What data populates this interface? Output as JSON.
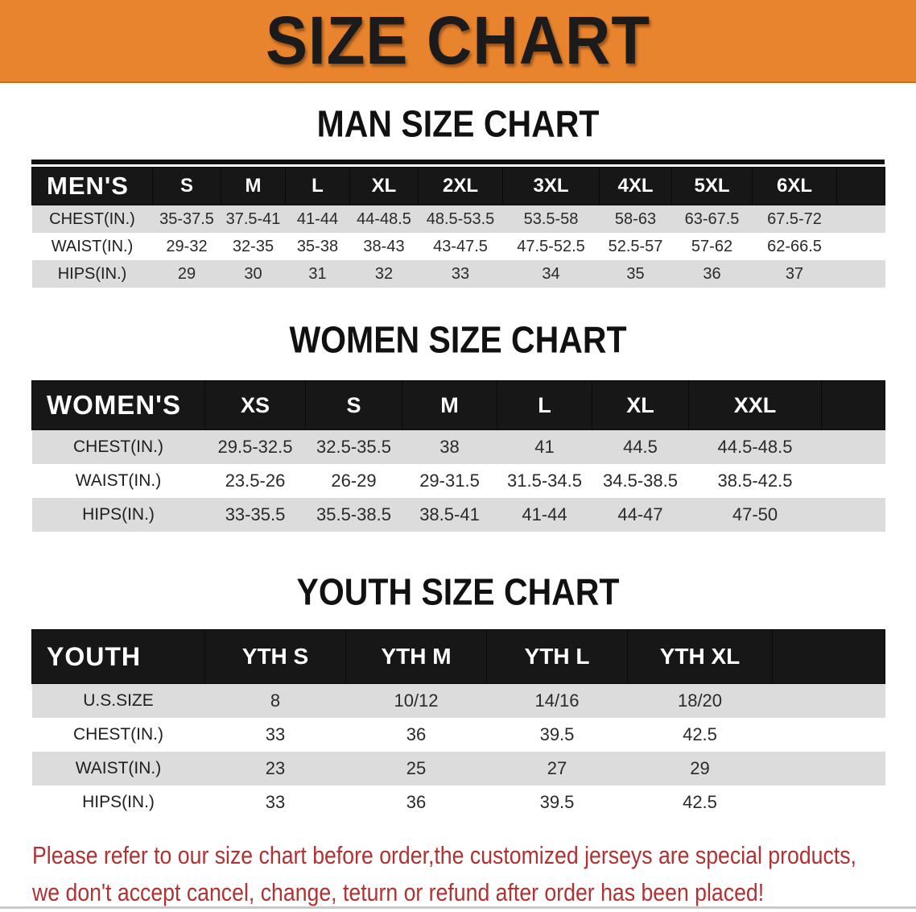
{
  "banner": {
    "title": "SIZE CHART",
    "bg_color": "#e8842d",
    "text_color": "#1b1b1b"
  },
  "colors": {
    "table_header_bg": "#171717",
    "table_stripe": "#dcdcdc",
    "disclaimer_text": "#b03232"
  },
  "sections": [
    {
      "heading": "MAN SIZE CHART",
      "table": {
        "label": "MEN'S",
        "columns": [
          "S",
          "M",
          "L",
          "XL",
          "2XL",
          "3XL",
          "4XL",
          "5XL",
          "6XL"
        ],
        "rows": [
          {
            "label": "CHEST(IN.)",
            "values": [
              "35-37.5",
              "37.5-41",
              "41-44",
              "44-48.5",
              "48.5-53.5",
              "53.5-58",
              "58-63",
              "63-67.5",
              "67.5-72"
            ]
          },
          {
            "label": "WAIST(IN.)",
            "values": [
              "29-32",
              "32-35",
              "35-38",
              "38-43",
              "43-47.5",
              "47.5-52.5",
              "52.5-57",
              "57-62",
              "62-66.5"
            ]
          },
          {
            "label": "HIPS(IN.)",
            "values": [
              "29",
              "30",
              "31",
              "32",
              "33",
              "34",
              "35",
              "36",
              "37"
            ]
          }
        ]
      }
    },
    {
      "heading": "WOMEN SIZE CHART",
      "table": {
        "label": "WOMEN'S",
        "columns": [
          "XS",
          "S",
          "M",
          "L",
          "XL",
          "XXL"
        ],
        "rows": [
          {
            "label": "CHEST(IN.)",
            "values": [
              "29.5-32.5",
              "32.5-35.5",
              "38",
              "41",
              "44.5",
              "44.5-48.5"
            ]
          },
          {
            "label": "WAIST(IN.)",
            "values": [
              "23.5-26",
              "26-29",
              "29-31.5",
              "31.5-34.5",
              "34.5-38.5",
              "38.5-42.5"
            ]
          },
          {
            "label": "HIPS(IN.)",
            "values": [
              "33-35.5",
              "35.5-38.5",
              "38.5-41",
              "41-44",
              "44-47",
              "47-50"
            ]
          }
        ]
      }
    },
    {
      "heading": "YOUTH SIZE CHART",
      "table": {
        "label": "YOUTH",
        "columns": [
          "YTH S",
          "YTH M",
          "YTH L",
          "YTH XL"
        ],
        "rows": [
          {
            "label": "U.S.SIZE",
            "values": [
              "8",
              "10/12",
              "14/16",
              "18/20"
            ]
          },
          {
            "label": "CHEST(IN.)",
            "values": [
              "33",
              "36",
              "39.5",
              "42.5"
            ]
          },
          {
            "label": "WAIST(IN.)",
            "values": [
              "23",
              "25",
              "27",
              "29"
            ]
          },
          {
            "label": "HIPS(IN.)",
            "values": [
              "33",
              "36",
              "39.5",
              "42.5"
            ]
          }
        ]
      }
    }
  ],
  "disclaimer": {
    "line1": "Please refer to our size chart before order,the customized jerseys are special products,",
    "line2": "we don't accept cancel, change, teturn or refund after order has been placed!"
  }
}
